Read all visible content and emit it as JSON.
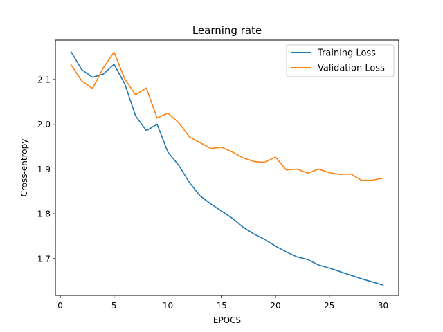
{
  "chart_data": {
    "type": "line",
    "title": "Learning rate",
    "xlabel": "EPOCS",
    "ylabel": "Cross-entropy",
    "xlim": [
      -0.45,
      31.45
    ],
    "ylim": [
      1.618,
      2.188
    ],
    "xticks": [
      0,
      5,
      10,
      15,
      20,
      25,
      30
    ],
    "yticks": [
      1.7,
      1.8,
      1.9,
      2.0,
      2.1
    ],
    "xtick_labels": [
      "0",
      "5",
      "10",
      "15",
      "20",
      "25",
      "30"
    ],
    "ytick_labels": [
      "1.7",
      "1.8",
      "1.9",
      "2.0",
      "2.1"
    ],
    "grid": false,
    "legend_position": "top-right",
    "x": [
      1,
      2,
      3,
      4,
      5,
      6,
      7,
      8,
      9,
      10,
      11,
      12,
      13,
      14,
      15,
      16,
      17,
      18,
      19,
      20,
      21,
      22,
      23,
      24,
      25,
      26,
      27,
      28,
      29,
      30
    ],
    "series": [
      {
        "name": "Training Loss",
        "color": "#1f77b4",
        "values": [
          2.162,
          2.122,
          2.105,
          2.112,
          2.134,
          2.09,
          2.019,
          1.986,
          2.0,
          1.938,
          1.909,
          1.87,
          1.84,
          1.822,
          1.806,
          1.79,
          1.77,
          1.755,
          1.743,
          1.728,
          1.715,
          1.704,
          1.698,
          1.686,
          1.679,
          1.671,
          1.663,
          1.655,
          1.648,
          1.641
        ]
      },
      {
        "name": "Validation Loss",
        "color": "#ff7f0e",
        "values": [
          2.133,
          2.097,
          2.08,
          2.126,
          2.161,
          2.101,
          2.066,
          2.081,
          2.014,
          2.025,
          2.004,
          1.972,
          1.959,
          1.946,
          1.949,
          1.938,
          1.925,
          1.917,
          1.915,
          1.927,
          1.898,
          1.9,
          1.891,
          1.9,
          1.892,
          1.888,
          1.889,
          1.875,
          1.875,
          1.88
        ]
      }
    ]
  }
}
